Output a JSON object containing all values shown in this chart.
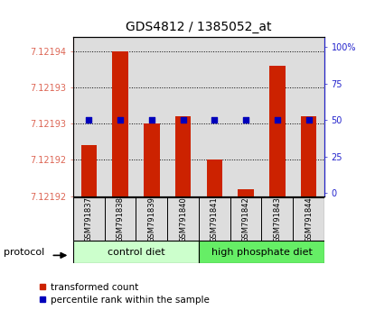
{
  "title": "GDS4812 / 1385052_at",
  "samples": [
    "GSM791837",
    "GSM791838",
    "GSM791839",
    "GSM791840",
    "GSM791841",
    "GSM791842",
    "GSM791843",
    "GSM791844"
  ],
  "red_values": [
    7.121927,
    7.12194,
    7.12193,
    7.121931,
    7.121925,
    7.121921,
    7.121938,
    7.121931
  ],
  "blue_values": [
    50,
    50,
    50,
    50,
    50,
    50,
    50,
    50
  ],
  "y_min": 7.12192,
  "y_max": 7.121942,
  "red_ticks": [
    7.12192,
    7.121925,
    7.12193,
    7.121935,
    7.12194
  ],
  "red_tick_labels": [
    "7.12192",
    "7.12192",
    "7.12193",
    "7.12193",
    "7.12194"
  ],
  "blue_ticks": [
    0,
    25,
    50,
    75,
    100
  ],
  "blue_tick_labels": [
    "0",
    "25",
    "50",
    "75",
    "100%"
  ],
  "groups": [
    {
      "label": "control diet",
      "start": 0,
      "end": 3,
      "color": "#ccffcc"
    },
    {
      "label": "high phosphate diet",
      "start": 4,
      "end": 7,
      "color": "#66ee66"
    }
  ],
  "legend_red_label": "transformed count",
  "legend_blue_label": "percentile rank within the sample",
  "bar_color": "#cc2200",
  "dot_color": "#0000bb",
  "title_fontsize": 10,
  "red_color": "#dd6655",
  "blue_color": "#2222cc",
  "bg_color": "#dddddd",
  "white": "#ffffff"
}
